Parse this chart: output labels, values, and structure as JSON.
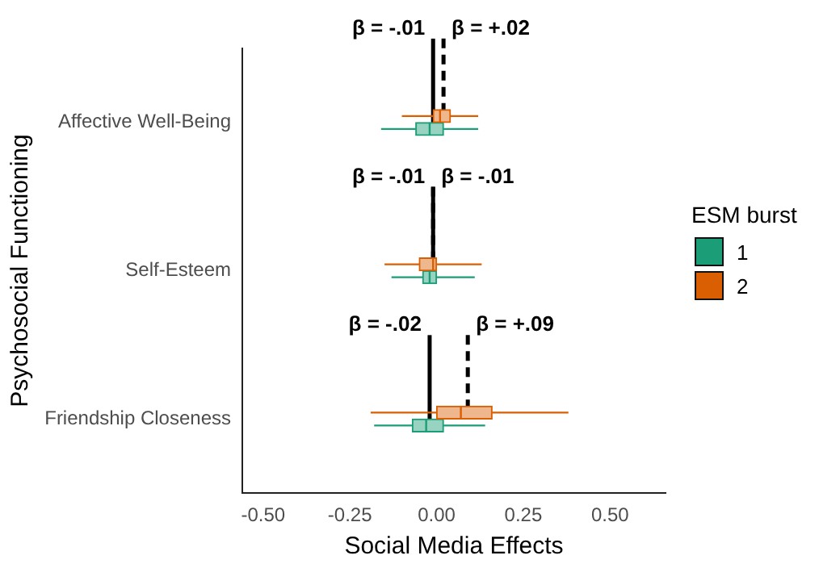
{
  "chart_data": {
    "type": "box",
    "orientation": "horizontal",
    "xlabel": "Social Media Effects",
    "ylabel": "Psychosocial Functioning",
    "legend_title": "ESM burst",
    "categories": [
      "Affective Well-Being",
      "Self-Esteem",
      "Friendship Closeness"
    ],
    "series": [
      {
        "name": "1",
        "color": "#1b9e77",
        "boxes": [
          {
            "low": -0.16,
            "q1": -0.06,
            "median": -0.02,
            "q3": 0.02,
            "high": 0.12
          },
          {
            "low": -0.13,
            "q1": -0.04,
            "median": -0.02,
            "q3": 0.0,
            "high": 0.11
          },
          {
            "low": -0.18,
            "q1": -0.07,
            "median": -0.03,
            "q3": 0.02,
            "high": 0.14
          }
        ]
      },
      {
        "name": "2",
        "color": "#d95f02",
        "boxes": [
          {
            "low": -0.1,
            "q1": -0.01,
            "median": 0.01,
            "q3": 0.04,
            "high": 0.12
          },
          {
            "low": -0.15,
            "q1": -0.05,
            "median": -0.01,
            "q3": 0.0,
            "high": 0.13
          },
          {
            "low": -0.19,
            "q1": 0.0,
            "median": 0.07,
            "q3": 0.16,
            "high": 0.38
          }
        ]
      }
    ],
    "annotations": [
      {
        "text": "β = -.01",
        "x": -0.01,
        "y": "Affective Well-Being"
      },
      {
        "text": "β = +.02",
        "x": 0.02,
        "y": "Affective Well-Being"
      },
      {
        "text": "β = -.01",
        "x": -0.01,
        "y": "Self-Esteem"
      },
      {
        "text": "β = -.01",
        "x": -0.01,
        "y": "Self-Esteem"
      },
      {
        "text": "β = -.02",
        "x": -0.02,
        "y": "Friendship Closeness"
      },
      {
        "text": "β = +.09",
        "x": 0.09,
        "y": "Friendship Closeness"
      }
    ],
    "xlim": [
      -0.56,
      0.66
    ],
    "xticks": [
      {
        "value": -0.5,
        "label": "-0.50"
      },
      {
        "value": -0.25,
        "label": "-0.25"
      },
      {
        "value": 0,
        "label": "0.00"
      },
      {
        "value": 0.25,
        "label": "0.25"
      },
      {
        "value": 0.5,
        "label": "0.50"
      }
    ],
    "grid": false,
    "legend": "right"
  }
}
